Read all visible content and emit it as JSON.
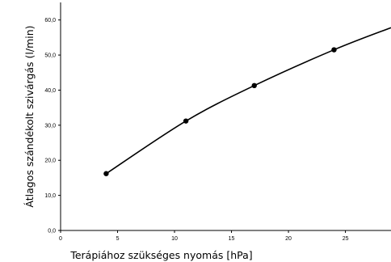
{
  "chart_data": {
    "type": "line",
    "title": "",
    "xlabel": "Terápiához szükséges nyomás [hPa]",
    "ylabel": "Átlagos szándékolt szivárgás (l/min)",
    "xlim": [
      0,
      29
    ],
    "ylim": [
      0,
      65
    ],
    "x_ticks": [
      0,
      5,
      10,
      15,
      20,
      25
    ],
    "x_tick_labels": [
      "0",
      "5",
      "10",
      "15",
      "20",
      "25"
    ],
    "y_ticks": [
      0,
      10,
      20,
      30,
      40,
      50,
      60
    ],
    "y_tick_labels": [
      "0,0",
      "10,0",
      "20,0",
      "30,0",
      "40,0",
      "50,0",
      "60,0"
    ],
    "grid": false,
    "legend": "none",
    "series": [
      {
        "points": [
          {
            "x": 4,
            "y": 16.2
          },
          {
            "x": 11,
            "y": 31.2
          },
          {
            "x": 17,
            "y": 41.3
          },
          {
            "x": 24,
            "y": 51.5
          }
        ],
        "curve_extension": [
          {
            "x": 29,
            "y": 57.8
          }
        ]
      }
    ]
  }
}
